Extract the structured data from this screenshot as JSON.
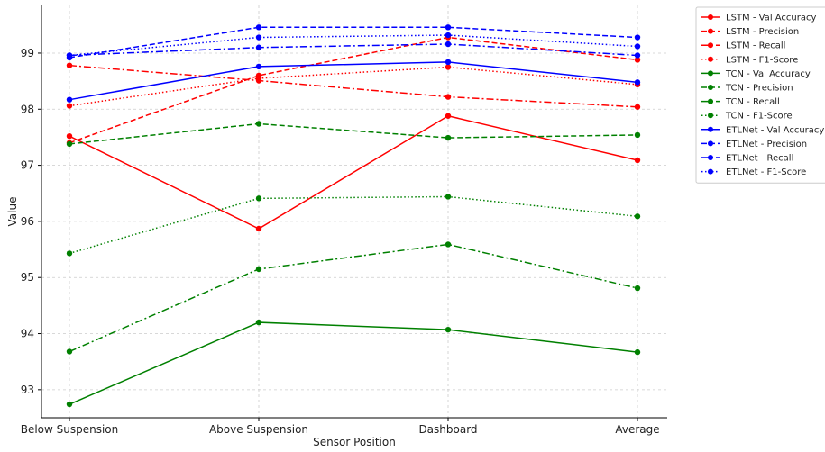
{
  "chart_data": {
    "type": "line",
    "title": "",
    "xlabel": "Sensor Position",
    "ylabel": "Value",
    "categories": [
      "Below Suspension",
      "Above Suspension",
      "Dashboard",
      "Average"
    ],
    "ylim": [
      92.5,
      99.85
    ],
    "yticks": [
      93,
      94,
      95,
      96,
      97,
      98,
      99
    ],
    "grid": true,
    "legend_position": "right",
    "series": [
      {
        "name": "LSTM - Val Accuracy",
        "color": "#ff0000",
        "style": "solid",
        "values": [
          97.52,
          95.87,
          97.88,
          97.09
        ]
      },
      {
        "name": "LSTM - Precision",
        "color": "#ff0000",
        "style": "dashed",
        "values": [
          97.4,
          98.6,
          99.28,
          98.88
        ]
      },
      {
        "name": "LSTM - Recall",
        "color": "#ff0000",
        "style": "dashdot",
        "values": [
          98.78,
          98.51,
          98.22,
          98.04
        ]
      },
      {
        "name": "LSTM - F1-Score",
        "color": "#ff0000",
        "style": "dotted",
        "values": [
          98.06,
          98.55,
          98.75,
          98.44
        ]
      },
      {
        "name": "TCN - Val Accuracy",
        "color": "#008000",
        "style": "solid",
        "values": [
          92.74,
          94.2,
          94.07,
          93.67
        ]
      },
      {
        "name": "TCN - Precision",
        "color": "#008000",
        "style": "dashed",
        "values": [
          97.38,
          97.74,
          97.49,
          97.54
        ]
      },
      {
        "name": "TCN - Recall",
        "color": "#008000",
        "style": "dashdot",
        "values": [
          93.68,
          95.15,
          95.59,
          94.81
        ]
      },
      {
        "name": "TCN - F1-Score",
        "color": "#008000",
        "style": "dotted",
        "values": [
          95.43,
          96.41,
          96.44,
          96.09
        ]
      },
      {
        "name": "ETLNet - Val Accuracy",
        "color": "#0000ff",
        "style": "solid",
        "values": [
          98.17,
          98.76,
          98.84,
          98.48
        ]
      },
      {
        "name": "ETLNet - Precision",
        "color": "#0000ff",
        "style": "dashed",
        "values": [
          98.92,
          99.46,
          99.46,
          99.28
        ]
      },
      {
        "name": "ETLNet - Recall",
        "color": "#0000ff",
        "style": "dashdot",
        "values": [
          98.96,
          99.1,
          99.16,
          98.96
        ]
      },
      {
        "name": "ETLNet - F1-Score",
        "color": "#0000ff",
        "style": "dotted",
        "values": [
          98.96,
          99.28,
          99.32,
          99.12
        ]
      }
    ]
  }
}
